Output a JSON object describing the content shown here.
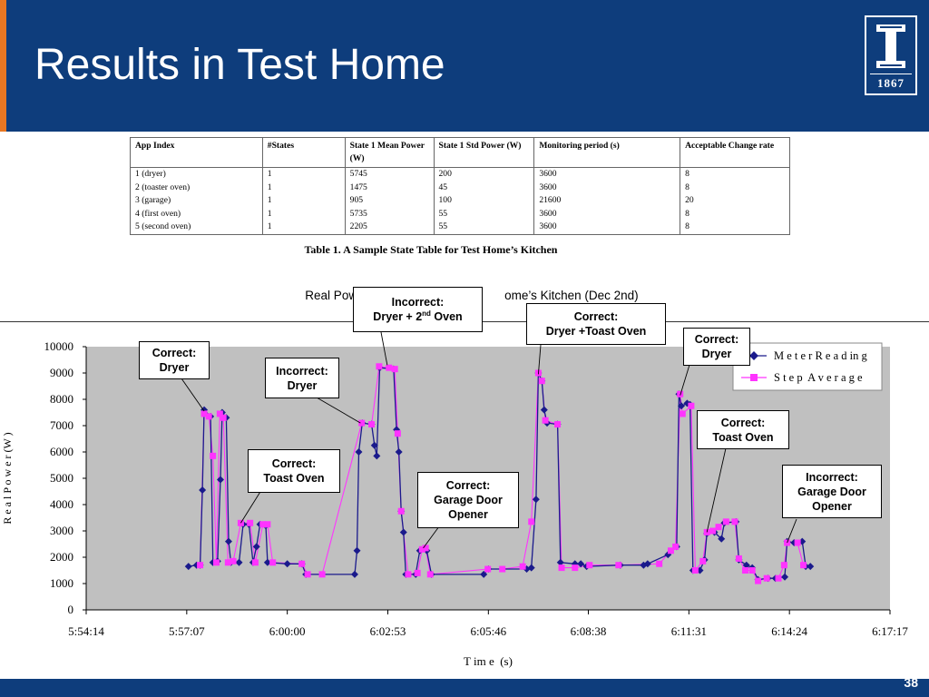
{
  "slide": {
    "title": "Results in Test Home",
    "page_number": "38",
    "logo_year": "1867",
    "colors": {
      "header": "#0e3d7c",
      "accent": "#e87722",
      "meter": "#1a1a8c",
      "step": "#ff33ff",
      "plot_bg": "#c0c0c0"
    },
    "logo_icon": "university-column-icon"
  },
  "table": {
    "headers": [
      "App Index",
      "#States",
      "State 1 Mean Power (W)",
      "State 1 Std Power (W)",
      "Monitoring period (s)",
      "Acceptable Change rate"
    ],
    "rows": [
      [
        "1 (dryer)",
        "1",
        "5745",
        "200",
        "3600",
        "8"
      ],
      [
        "2 (toaster oven)",
        "1",
        "1475",
        "45",
        "3600",
        "8"
      ],
      [
        "3 (garage)",
        "1",
        "905",
        "100",
        "21600",
        "20"
      ],
      [
        "4 (first oven)",
        "1",
        "5735",
        "55",
        "3600",
        "8"
      ],
      [
        "5 (second oven)",
        "1",
        "2205",
        "55",
        "3600",
        "8"
      ]
    ],
    "caption": "Table 1.  A Sample State Table for Test Home’s Kitchen"
  },
  "callouts": [
    {
      "line1": "Incorrect:",
      "line2_pre": "Dryer + 2",
      "line2_sup": "nd",
      "line2_post": " Oven"
    },
    {
      "line1": "Correct:",
      "line2": "Dryer +Toast Oven"
    },
    {
      "line1": "Correct:",
      "line2": "Dryer"
    },
    {
      "line1": "Correct:",
      "line2": "Dryer"
    },
    {
      "line1": "Incorrect:",
      "line2": "Dryer"
    },
    {
      "line1": "Correct:",
      "line2": "Toast Oven"
    },
    {
      "line1": "Correct:",
      "line2": "Garage Door",
      "line3": "Opener"
    },
    {
      "line1": "Correct:",
      "line2": "Toast Oven"
    },
    {
      "line1": "Incorrect:",
      "line2": "Garage Door",
      "line3": "Opener"
    }
  ],
  "chart_data": {
    "type": "line",
    "title": "Real Power                                        ome’s Kitchen (Dec 2nd)",
    "xlabel": "T im e  (s)",
    "ylabel": "R e a l P o w e r (W )",
    "ylim": [
      0,
      10000
    ],
    "yticks": [
      0,
      1000,
      2000,
      3000,
      4000,
      5000,
      6000,
      7000,
      8000,
      9000,
      10000
    ],
    "xlim_seconds": [
      21254,
      22637
    ],
    "xticks": [
      "5:54:14",
      "5:57:07",
      "6:00:00",
      "6:02:53",
      "6:05:46",
      "6:08:38",
      "6:11:31",
      "6:14:24",
      "6:17:17"
    ],
    "legend_position": "top-right",
    "grid": false,
    "series": [
      {
        "name": "M e t e r R e a d in g",
        "points": [
          [
            "5:57:10",
            1650
          ],
          [
            "5:57:24",
            1700
          ],
          [
            "5:57:30",
            1700
          ],
          [
            "5:57:34",
            4550
          ],
          [
            "5:57:37",
            7600
          ],
          [
            "5:57:48",
            7350
          ],
          [
            "5:57:52",
            1800
          ],
          [
            "5:58:00",
            1850
          ],
          [
            "5:58:05",
            4950
          ],
          [
            "5:58:08",
            7500
          ],
          [
            "5:58:15",
            7300
          ],
          [
            "5:58:19",
            2600
          ],
          [
            "5:58:23",
            1800
          ],
          [
            "5:58:37",
            1800
          ],
          [
            "5:58:44",
            3250
          ],
          [
            "5:58:54",
            3250
          ],
          [
            "5:59:01",
            1800
          ],
          [
            "5:59:07",
            2400
          ],
          [
            "5:59:13",
            3250
          ],
          [
            "5:59:23",
            3200
          ],
          [
            "5:59:26",
            1800
          ],
          [
            "6:00:00",
            1750
          ],
          [
            "6:00:25",
            1750
          ],
          [
            "6:00:32",
            1350
          ],
          [
            "6:01:56",
            1350
          ],
          [
            "6:02:00",
            2250
          ],
          [
            "6:02:03",
            6000
          ],
          [
            "6:02:09",
            7100
          ],
          [
            "6:02:25",
            7050
          ],
          [
            "6:02:30",
            6250
          ],
          [
            "6:02:34",
            5850
          ],
          [
            "6:02:39",
            9200
          ],
          [
            "6:03:03",
            9150
          ],
          [
            "6:03:08",
            6850
          ],
          [
            "6:03:12",
            6000
          ],
          [
            "6:03:16",
            3750
          ],
          [
            "6:03:20",
            2950
          ],
          [
            "6:03:24",
            1350
          ],
          [
            "6:03:41",
            1350
          ],
          [
            "6:03:48",
            2250
          ],
          [
            "6:04:00",
            2250
          ],
          [
            "6:04:08",
            1350
          ],
          [
            "6:05:38",
            1350
          ],
          [
            "6:05:46",
            1550
          ],
          [
            "6:06:52",
            1550
          ],
          [
            "6:07:00",
            1600
          ],
          [
            "6:07:08",
            4200
          ],
          [
            "6:07:12",
            9000
          ],
          [
            "6:07:18",
            8700
          ],
          [
            "6:07:22",
            7600
          ],
          [
            "6:07:27",
            7100
          ],
          [
            "6:07:45",
            7050
          ],
          [
            "6:07:50",
            1800
          ],
          [
            "6:08:15",
            1750
          ],
          [
            "6:08:25",
            1750
          ],
          [
            "6:08:35",
            1650
          ],
          [
            "6:09:33",
            1700
          ],
          [
            "6:10:13",
            1700
          ],
          [
            "6:10:20",
            1750
          ],
          [
            "6:10:55",
            2100
          ],
          [
            "6:11:10",
            2400
          ],
          [
            "6:11:14",
            8200
          ],
          [
            "6:11:18",
            7750
          ],
          [
            "6:11:28",
            7850
          ],
          [
            "6:11:33",
            7800
          ],
          [
            "6:11:38",
            1500
          ],
          [
            "6:11:50",
            1500
          ],
          [
            "6:11:58",
            1900
          ],
          [
            "6:12:02",
            2900
          ],
          [
            "6:12:15",
            2950
          ],
          [
            "6:12:27",
            2700
          ],
          [
            "6:12:32",
            3300
          ],
          [
            "6:12:52",
            3350
          ],
          [
            "6:12:57",
            1900
          ],
          [
            "6:13:10",
            1700
          ],
          [
            "6:13:20",
            1600
          ],
          [
            "6:13:30",
            1150
          ],
          [
            "6:13:47",
            1200
          ],
          [
            "6:14:00",
            1200
          ],
          [
            "6:14:16",
            1250
          ],
          [
            "6:14:20",
            2600
          ],
          [
            "6:14:32",
            2550
          ],
          [
            "6:14:46",
            2600
          ],
          [
            "6:14:52",
            1650
          ],
          [
            "6:15:00",
            1650
          ]
        ]
      },
      {
        "name": "S t e p  A v e r a g e",
        "points": [
          [
            "5:57:30",
            1700
          ],
          [
            "5:57:37",
            7450
          ],
          [
            "5:57:45",
            7350
          ],
          [
            "5:57:52",
            5850
          ],
          [
            "5:57:58",
            1800
          ],
          [
            "5:58:04",
            7450
          ],
          [
            "5:58:10",
            7300
          ],
          [
            "5:58:18",
            1800
          ],
          [
            "5:58:27",
            1850
          ],
          [
            "5:58:40",
            3300
          ],
          [
            "5:58:56",
            3300
          ],
          [
            "5:59:05",
            1800
          ],
          [
            "5:59:18",
            3250
          ],
          [
            "5:59:26",
            3250
          ],
          [
            "5:59:35",
            1800
          ],
          [
            "6:00:25",
            1750
          ],
          [
            "6:00:35",
            1350
          ],
          [
            "6:01:00",
            1350
          ],
          [
            "6:02:08",
            7100
          ],
          [
            "6:02:25",
            7050
          ],
          [
            "6:02:38",
            9250
          ],
          [
            "6:02:55",
            9200
          ],
          [
            "6:03:05",
            9150
          ],
          [
            "6:03:10",
            6700
          ],
          [
            "6:03:16",
            3750
          ],
          [
            "6:03:28",
            1350
          ],
          [
            "6:03:44",
            1400
          ],
          [
            "6:03:52",
            2300
          ],
          [
            "6:03:58",
            2350
          ],
          [
            "6:04:06",
            1350
          ],
          [
            "6:05:45",
            1550
          ],
          [
            "6:06:10",
            1550
          ],
          [
            "6:06:45",
            1650
          ],
          [
            "6:07:00",
            3350
          ],
          [
            "6:07:12",
            9000
          ],
          [
            "6:07:18",
            8700
          ],
          [
            "6:07:24",
            7200
          ],
          [
            "6:07:45",
            7050
          ],
          [
            "6:07:52",
            1600
          ],
          [
            "6:08:15",
            1600
          ],
          [
            "6:08:40",
            1700
          ],
          [
            "6:09:30",
            1700
          ],
          [
            "6:10:40",
            1750
          ],
          [
            "6:11:00",
            2250
          ],
          [
            "6:11:08",
            2400
          ],
          [
            "6:11:16",
            8200
          ],
          [
            "6:11:20",
            7450
          ],
          [
            "6:11:35",
            7750
          ],
          [
            "6:11:42",
            1500
          ],
          [
            "6:11:55",
            1850
          ],
          [
            "6:12:02",
            2950
          ],
          [
            "6:12:12",
            3000
          ],
          [
            "6:12:22",
            3150
          ],
          [
            "6:12:35",
            3350
          ],
          [
            "6:12:50",
            3350
          ],
          [
            "6:12:57",
            1950
          ],
          [
            "6:13:08",
            1500
          ],
          [
            "6:13:20",
            1500
          ],
          [
            "6:13:30",
            1100
          ],
          [
            "6:13:45",
            1200
          ],
          [
            "6:14:05",
            1200
          ],
          [
            "6:14:15",
            1700
          ],
          [
            "6:14:20",
            2550
          ],
          [
            "6:14:38",
            2550
          ],
          [
            "6:14:48",
            1700
          ]
        ]
      }
    ]
  }
}
